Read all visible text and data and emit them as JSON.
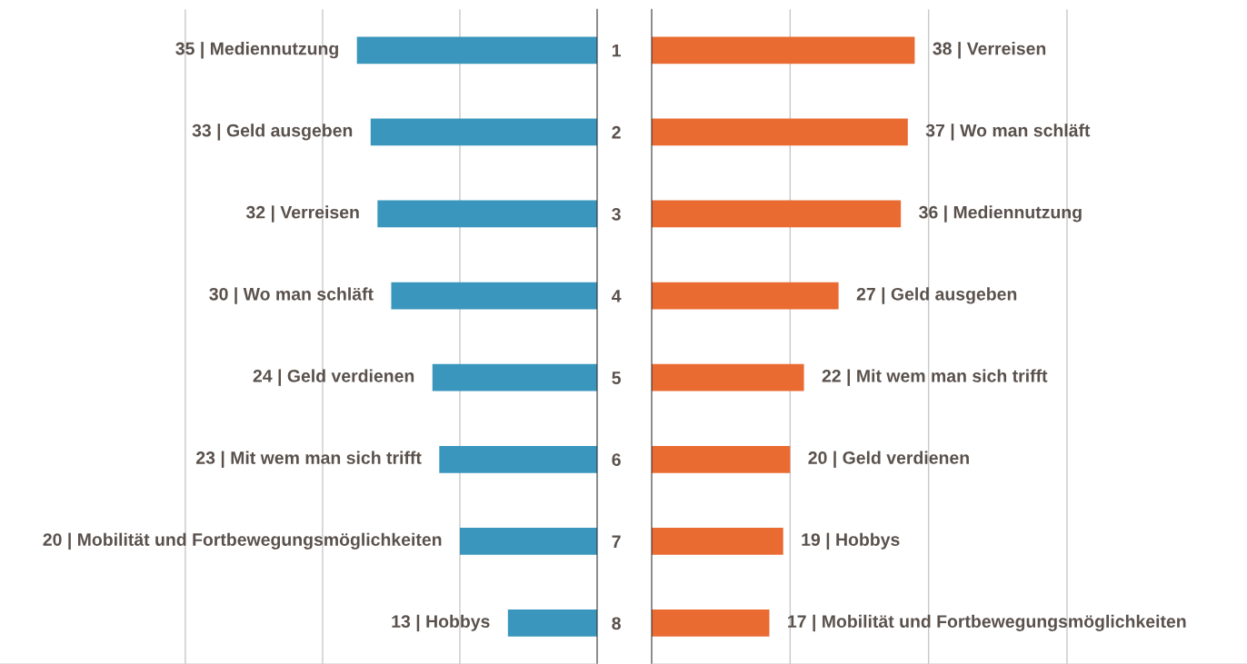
{
  "chart_data": [
    {
      "type": "bar",
      "orientation": "horizontal",
      "categories": [
        "1",
        "2",
        "3",
        "4",
        "5",
        "6",
        "7",
        "8"
      ],
      "series": [
        {
          "color": "#3a96bd",
          "values": [
            35,
            33,
            32,
            30,
            24,
            23,
            20,
            13
          ],
          "value_labels": [
            "35 | Mediennutzung",
            "33 | Geld ausgeben",
            "32 | Verreisen",
            "30 | Wo man schläft",
            "24 | Geld verdienen",
            "23 | Mit wem man sich trifft",
            "20 | Mobilität und Fortbewegungsmöglichkeiten",
            "13 | Hobbys"
          ]
        }
      ],
      "xlim": [
        87,
        0
      ],
      "xticks": [
        {
          "value": 20,
          "label": null
        },
        {
          "value": 40,
          "label": null
        },
        {
          "value": 60,
          "label": null
        }
      ],
      "grid": "x",
      "legend": false,
      "tick_labels": false
    },
    {
      "type": "bar",
      "orientation": "horizontal",
      "categories": [
        "1",
        "2",
        "3",
        "4",
        "5",
        "6",
        "7",
        "8"
      ],
      "series": [
        {
          "color": "#e96b32",
          "values": [
            38,
            37,
            36,
            27,
            22,
            20,
            19,
            17
          ],
          "value_labels": [
            "38 | Verreisen",
            "37 | Wo man schläft",
            "36 | Mediennutzung",
            "27 | Geld ausgeben",
            "22 | Mit wem man sich trifft",
            "20 | Geld verdienen",
            "19 | Hobbys",
            "17 | Mobilität und Fortbewegungsmöglichkeiten"
          ]
        }
      ],
      "xlim": [
        0,
        86
      ],
      "xticks": [
        {
          "value": 20,
          "label": null
        },
        {
          "value": 40,
          "label": null
        },
        {
          "value": 60,
          "label": null
        }
      ],
      "grid": "x",
      "legend": false,
      "tick_labels": "y"
    }
  ]
}
